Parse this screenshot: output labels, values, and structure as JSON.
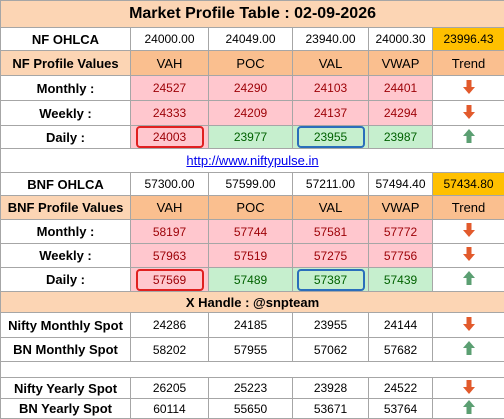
{
  "title": "Market Profile Table : 02-09-2026",
  "nf": {
    "ohlca": [
      "NF OHLCA",
      "24000.00",
      "24049.00",
      "23940.00",
      "24000.30",
      "23996.43"
    ],
    "header": [
      "NF Profile Values",
      "VAH",
      "POC",
      "VAL",
      "VWAP",
      "Trend"
    ],
    "monthly": [
      "Monthly :",
      "24527",
      "24290",
      "24103",
      "24401"
    ],
    "weekly": [
      "Weekly :",
      "24333",
      "24209",
      "24137",
      "24294"
    ],
    "daily": [
      "Daily :",
      "24003",
      "23977",
      "23955",
      "23987"
    ]
  },
  "link": "http://www.niftypulse.in",
  "bnf": {
    "ohlca": [
      "BNF OHLCA",
      "57300.00",
      "57599.00",
      "57211.00",
      "57494.40",
      "57434.80"
    ],
    "header": [
      "BNF Profile Values",
      "VAH",
      "POC",
      "VAL",
      "VWAP",
      "Trend"
    ],
    "monthly": [
      "Monthly :",
      "58197",
      "57744",
      "57581",
      "57772"
    ],
    "weekly": [
      "Weekly :",
      "57963",
      "57519",
      "57275",
      "57756"
    ],
    "daily": [
      "Daily :",
      "57569",
      "57489",
      "57387",
      "57439"
    ]
  },
  "handle": "X Handle : @snpteam",
  "spot": {
    "monthly": [
      [
        "Nifty Monthly Spot",
        "24286",
        "24185",
        "23955",
        "24144"
      ],
      [
        "BN Monthly Spot",
        "58202",
        "57955",
        "57062",
        "57682"
      ]
    ],
    "yearly": [
      [
        "Nifty Yearly Spot",
        "26205",
        "25223",
        "23928",
        "24522"
      ],
      [
        "BN Yearly Spot",
        "60114",
        "55650",
        "53671",
        "53764"
      ]
    ]
  }
}
